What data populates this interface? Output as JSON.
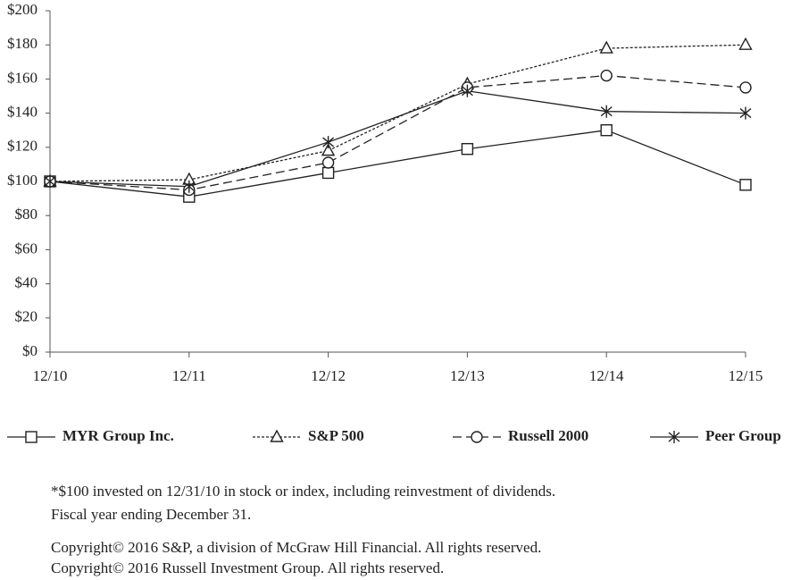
{
  "chart_data": {
    "type": "line",
    "categories": [
      "12/10",
      "12/11",
      "12/12",
      "12/13",
      "12/14",
      "12/15"
    ],
    "series": [
      {
        "name": "MYR Group Inc.",
        "color": "#222222",
        "dash": "solid",
        "marker": "square",
        "values": [
          100,
          91,
          105,
          119,
          130,
          98
        ]
      },
      {
        "name": "S&P 500",
        "color": "#222222",
        "dash": "dotted",
        "marker": "triangle",
        "values": [
          100,
          101,
          118,
          157,
          178,
          180
        ]
      },
      {
        "name": "Russell 2000",
        "color": "#222222",
        "dash": "dashed",
        "marker": "circle",
        "values": [
          100,
          95,
          111,
          155,
          162,
          155
        ]
      },
      {
        "name": "Peer Group",
        "color": "#222222",
        "dash": "solid",
        "marker": "star",
        "values": [
          100,
          97,
          123,
          153,
          141,
          140
        ]
      }
    ],
    "ylim": [
      0,
      200
    ],
    "yticks": [
      {
        "value": 0,
        "label": "$0"
      },
      {
        "value": 20,
        "label": "$20"
      },
      {
        "value": 40,
        "label": "$40"
      },
      {
        "value": 60,
        "label": "$60"
      },
      {
        "value": 80,
        "label": "$80"
      },
      {
        "value": 100,
        "label": "$100"
      },
      {
        "value": 120,
        "label": "$120"
      },
      {
        "value": 140,
        "label": "$140"
      },
      {
        "value": 160,
        "label": "$160"
      },
      {
        "value": 180,
        "label": "$180"
      },
      {
        "value": 200,
        "label": "$200"
      }
    ],
    "grid": false,
    "legend": "bottom",
    "notes": [
      "*$100 invested on 12/31/10 in stock or index, including reinvestment of dividends.",
      "Fiscal year ending December 31.",
      "Copyright© 2016 S&P, a division of McGraw Hill Financial. All rights reserved.",
      "Copyright© 2016 Russell Investment Group. All rights reserved."
    ]
  }
}
